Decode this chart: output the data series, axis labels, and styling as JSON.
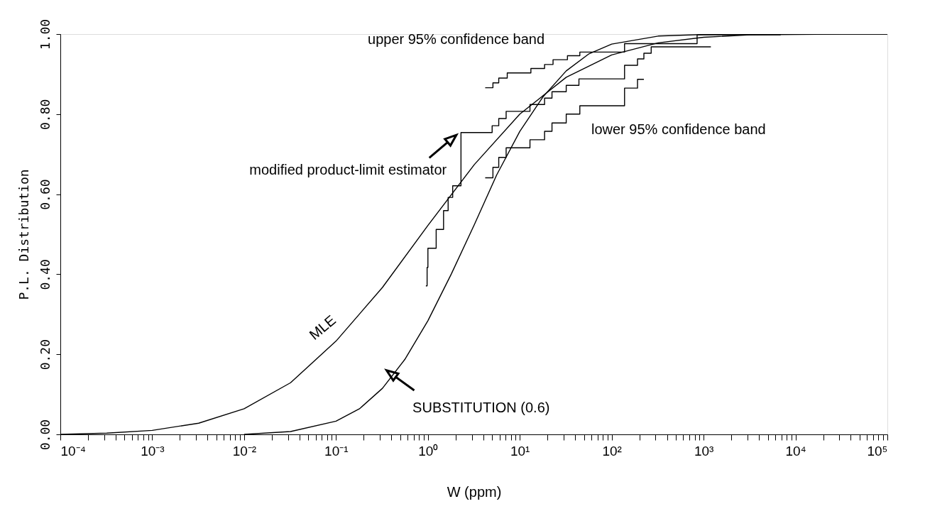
{
  "chart_data": {
    "type": "line",
    "xlabel": "W (ppm)",
    "ylabel": "P.L. Distribution",
    "log": "x",
    "xlim": [
      0.0001,
      100000
    ],
    "ylim": [
      0,
      1
    ],
    "xticks": [
      {
        "value": 0.0001,
        "label": "10⁻⁴"
      },
      {
        "value": 0.0002,
        "label": null
      },
      {
        "value": 0.0003,
        "label": null
      },
      {
        "value": 0.0004,
        "label": null
      },
      {
        "value": 0.0005,
        "label": null
      },
      {
        "value": 0.0006,
        "label": null
      },
      {
        "value": 0.0007,
        "label": null
      },
      {
        "value": 0.0008,
        "label": null
      },
      {
        "value": 0.0009,
        "label": null
      },
      {
        "value": 0.001,
        "label": "10⁻³"
      },
      {
        "value": 0.002,
        "label": null
      },
      {
        "value": 0.003,
        "label": null
      },
      {
        "value": 0.004,
        "label": null
      },
      {
        "value": 0.005,
        "label": null
      },
      {
        "value": 0.006,
        "label": null
      },
      {
        "value": 0.007,
        "label": null
      },
      {
        "value": 0.008,
        "label": null
      },
      {
        "value": 0.009,
        "label": null
      },
      {
        "value": 0.01,
        "label": "10⁻²"
      },
      {
        "value": 0.02,
        "label": null
      },
      {
        "value": 0.03,
        "label": null
      },
      {
        "value": 0.04,
        "label": null
      },
      {
        "value": 0.05,
        "label": null
      },
      {
        "value": 0.06,
        "label": null
      },
      {
        "value": 0.07,
        "label": null
      },
      {
        "value": 0.08,
        "label": null
      },
      {
        "value": 0.09,
        "label": null
      },
      {
        "value": 0.1,
        "label": "10⁻¹"
      },
      {
        "value": 0.2,
        "label": null
      },
      {
        "value": 0.3,
        "label": null
      },
      {
        "value": 0.4,
        "label": null
      },
      {
        "value": 0.5,
        "label": null
      },
      {
        "value": 0.6,
        "label": null
      },
      {
        "value": 0.7,
        "label": null
      },
      {
        "value": 0.8,
        "label": null
      },
      {
        "value": 0.9,
        "label": null
      },
      {
        "value": 1,
        "label": "10⁰"
      },
      {
        "value": 2,
        "label": null
      },
      {
        "value": 3,
        "label": null
      },
      {
        "value": 4,
        "label": null
      },
      {
        "value": 5,
        "label": null
      },
      {
        "value": 6,
        "label": null
      },
      {
        "value": 7,
        "label": null
      },
      {
        "value": 8,
        "label": null
      },
      {
        "value": 9,
        "label": null
      },
      {
        "value": 10,
        "label": "10¹"
      },
      {
        "value": 20,
        "label": null
      },
      {
        "value": 30,
        "label": null
      },
      {
        "value": 40,
        "label": null
      },
      {
        "value": 50,
        "label": null
      },
      {
        "value": 60,
        "label": null
      },
      {
        "value": 70,
        "label": null
      },
      {
        "value": 80,
        "label": null
      },
      {
        "value": 90,
        "label": null
      },
      {
        "value": 100,
        "label": "10²"
      },
      {
        "value": 200,
        "label": null
      },
      {
        "value": 300,
        "label": null
      },
      {
        "value": 400,
        "label": null
      },
      {
        "value": 500,
        "label": null
      },
      {
        "value": 600,
        "label": null
      },
      {
        "value": 700,
        "label": null
      },
      {
        "value": 800,
        "label": null
      },
      {
        "value": 900,
        "label": null
      },
      {
        "value": 1000,
        "label": "10³"
      },
      {
        "value": 2000,
        "label": null
      },
      {
        "value": 3000,
        "label": null
      },
      {
        "value": 4000,
        "label": null
      },
      {
        "value": 5000,
        "label": null
      },
      {
        "value": 6000,
        "label": null
      },
      {
        "value": 7000,
        "label": null
      },
      {
        "value": 8000,
        "label": null
      },
      {
        "value": 9000,
        "label": null
      },
      {
        "value": 10000,
        "label": "10⁴"
      },
      {
        "value": 20000,
        "label": null
      },
      {
        "value": 30000,
        "label": null
      },
      {
        "value": 40000,
        "label": null
      },
      {
        "value": 50000,
        "label": null
      },
      {
        "value": 60000,
        "label": null
      },
      {
        "value": 70000,
        "label": null
      },
      {
        "value": 80000,
        "label": null
      },
      {
        "value": 90000,
        "label": null
      },
      {
        "value": 100000,
        "label": "10⁵"
      }
    ],
    "yticks": [
      {
        "value": 0,
        "label": "0.00"
      },
      {
        "value": 0.2,
        "label": "0.20"
      },
      {
        "value": 0.4,
        "label": "0.40"
      },
      {
        "value": 0.6,
        "label": "0.60"
      },
      {
        "value": 0.8,
        "label": "0.80"
      },
      {
        "value": 1,
        "label": "1.00"
      }
    ],
    "grid": false,
    "marker": "none",
    "annotations": [
      "MLE",
      "SUBSTITUTION (0.6)",
      "modified product-limit estimator",
      "upper 95% confidence band",
      "lower 95% confidence band"
    ],
    "series": [
      {
        "color": "#000000",
        "x": [
          0.0001,
          0.00032,
          0.001,
          0.0032,
          0.01,
          0.032,
          0.1,
          0.32,
          1,
          3.2,
          10,
          32,
          100,
          320,
          1000,
          3200,
          10000,
          32000,
          100000
        ],
        "values": [
          0,
          0.003,
          0.01,
          0.028,
          0.064,
          0.129,
          0.233,
          0.367,
          0.522,
          0.674,
          0.8,
          0.892,
          0.948,
          0.978,
          0.992,
          0.998,
          0.999,
          1,
          1
        ]
      },
      {
        "color": "#000000",
        "x": [
          0.01,
          0.032,
          0.1,
          0.18,
          0.32,
          0.56,
          1,
          1.8,
          3.2,
          5.6,
          10,
          18,
          32,
          56,
          100,
          320,
          1000,
          10000,
          100000
        ],
        "values": [
          0,
          0.007,
          0.033,
          0.064,
          0.115,
          0.187,
          0.284,
          0.401,
          0.524,
          0.648,
          0.757,
          0.844,
          0.908,
          0.95,
          0.975,
          0.995,
          0.999,
          1,
          1
        ]
      },
      {
        "type": "step",
        "color": "#000000",
        "x": [
          0.95,
          0.98,
          1.0,
          1.23,
          1.48,
          1.66,
          1.86,
          2.29,
          5.0,
          5.9,
          7.1,
          12.9,
          18.6,
          22.4,
          32,
          44,
          138,
          191,
          224,
          269,
          1200
        ],
        "values": [
          0.371,
          0.417,
          0.465,
          0.512,
          0.559,
          0.592,
          0.621,
          0.754,
          0.771,
          0.789,
          0.807,
          0.824,
          0.84,
          0.856,
          0.872,
          0.888,
          0.922,
          0.938,
          0.952,
          0.968,
          0.968
        ]
      },
      {
        "type": "step",
        "color": "#000000",
        "x": [
          4.2,
          5.1,
          5.9,
          7.3,
          13.2,
          18.6,
          23,
          33,
          45,
          138,
          850,
          6900
        ],
        "values": [
          0.866,
          0.878,
          0.89,
          0.903,
          0.914,
          0.924,
          0.936,
          0.946,
          0.955,
          0.976,
          0.998,
          0.998
        ]
      },
      {
        "type": "step",
        "color": "#000000",
        "x": [
          4.2,
          5.1,
          5.9,
          7.1,
          12.9,
          18.6,
          22.4,
          32,
          45,
          138,
          191,
          224
        ],
        "values": [
          0.641,
          0.667,
          0.692,
          0.716,
          0.736,
          0.757,
          0.778,
          0.8,
          0.821,
          0.865,
          0.887,
          0.887
        ]
      }
    ]
  }
}
